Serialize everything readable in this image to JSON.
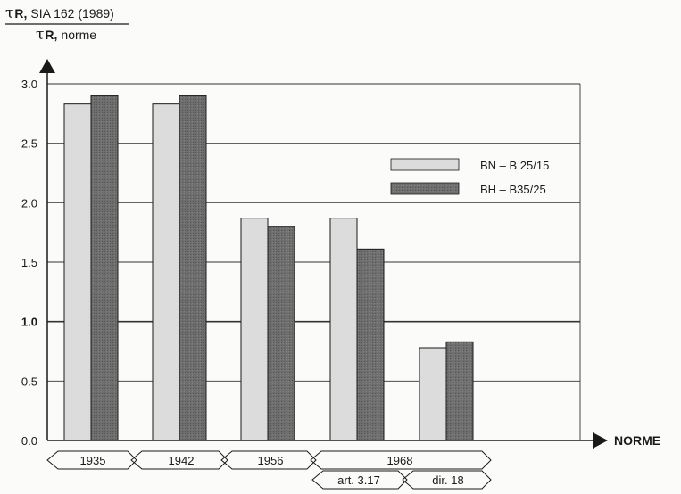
{
  "chart_data": {
    "type": "bar",
    "ylabel": {
      "numerator_symbol": "τ",
      "numerator_sub": "R,",
      "numerator_text": "SIA 162 (1989)",
      "denominator_symbol": "τ",
      "denominator_sub": "R,",
      "denominator_text": "norme"
    },
    "xlabel": "NORME",
    "ylim": [
      0,
      3.0
    ],
    "yticks": [
      "0.0",
      "0.5",
      "1.0",
      "1.5",
      "2.0",
      "2.5",
      "3.0"
    ],
    "categories": [
      "1935",
      "1942",
      "1956",
      "art. 3.17",
      "dir. 18"
    ],
    "category_groups": [
      {
        "label": "1935",
        "members": [
          "1935"
        ]
      },
      {
        "label": "1942",
        "members": [
          "1942"
        ]
      },
      {
        "label": "1956",
        "members": [
          "1956"
        ]
      },
      {
        "label": "1968",
        "members": [
          "art. 3.17",
          "dir. 18"
        ]
      }
    ],
    "sub_labels": [
      "art. 3.17",
      "dir. 18"
    ],
    "series": [
      {
        "name": "BN – B 25/15",
        "values": [
          2.83,
          2.83,
          1.87,
          1.87,
          0.78
        ],
        "color": "#dcdcdc"
      },
      {
        "name": "BH – B35/25",
        "values": [
          2.9,
          2.9,
          1.8,
          1.61,
          0.83
        ],
        "color": "#707070"
      }
    ],
    "reference_line": 1.0,
    "grid": true,
    "legend_position": "top-right"
  }
}
